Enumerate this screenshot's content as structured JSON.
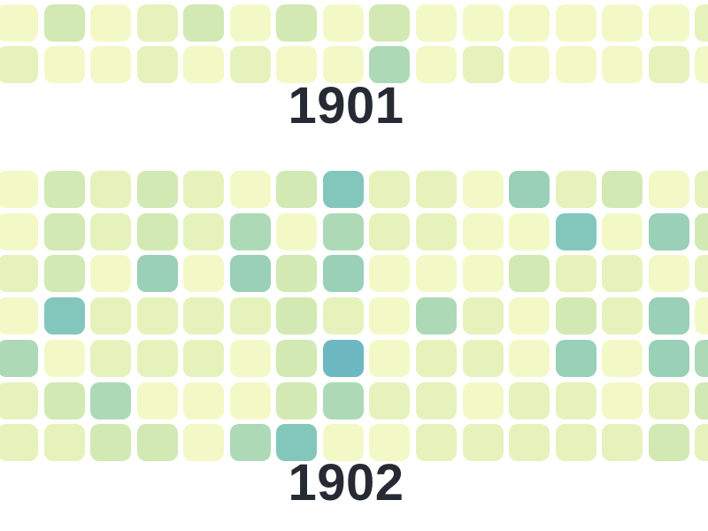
{
  "chart_data": {
    "type": "heatmap",
    "subtype": "calendar-year-grid",
    "description": "Calendar-style heatmap of daily values: rows are days of week, columns are weeks. Bottom two rows of the 1901 panel and seven full rows of the 1902 panel are visible; 16 week-columns fit in the viewport (first and last clipped).",
    "value_scale": "intensity levels 1 (pale yellow = low) through 7 (blue-teal = high)",
    "palette": [
      "#f3f9c6",
      "#e6f2bb",
      "#d2e9b3",
      "#aed9b6",
      "#99d0b7",
      "#83c7bc",
      "#6db8c1"
    ],
    "label_color": "#262b33",
    "background": "#ffffff",
    "legend": "none",
    "years": [
      {
        "label": "1901",
        "rows_visible": 2,
        "cols_visible": 16,
        "grid": [
          [
            1,
            3,
            1,
            2,
            3,
            1,
            3,
            1,
            3,
            1,
            1,
            1,
            1,
            1,
            1,
            2
          ],
          [
            2,
            1,
            1,
            2,
            1,
            2,
            1,
            1,
            4,
            1,
            2,
            1,
            1,
            1,
            2,
            1
          ]
        ]
      },
      {
        "label": "1902",
        "rows_visible": 7,
        "cols_visible": 16,
        "grid": [
          [
            1,
            3,
            2,
            3,
            2,
            1,
            3,
            6,
            2,
            2,
            1,
            5,
            2,
            3,
            1,
            2
          ],
          [
            1,
            3,
            2,
            3,
            2,
            4,
            1,
            4,
            2,
            2,
            1,
            1,
            6,
            1,
            5,
            3
          ],
          [
            2,
            3,
            1,
            5,
            1,
            5,
            3,
            5,
            1,
            1,
            1,
            3,
            2,
            2,
            1,
            2
          ],
          [
            1,
            6,
            2,
            2,
            2,
            2,
            3,
            2,
            1,
            4,
            2,
            1,
            3,
            2,
            5,
            1
          ],
          [
            4,
            1,
            2,
            2,
            2,
            1,
            3,
            7,
            1,
            2,
            2,
            1,
            5,
            1,
            5,
            4
          ],
          [
            2,
            3,
            4,
            1,
            1,
            1,
            3,
            4,
            2,
            2,
            1,
            2,
            2,
            1,
            2,
            3
          ],
          [
            2,
            2,
            3,
            3,
            1,
            4,
            6,
            1,
            1,
            2,
            2,
            2,
            2,
            2,
            3,
            2
          ]
        ]
      }
    ]
  }
}
